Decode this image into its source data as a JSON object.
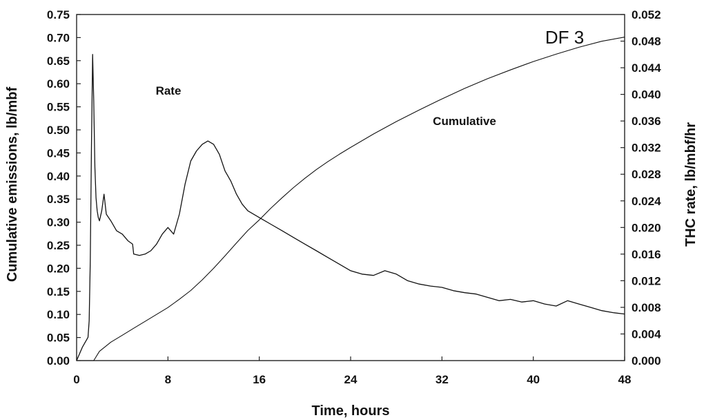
{
  "chart_data": {
    "type": "line",
    "title": "DF 3",
    "xlabel": "Time, hours",
    "ylabel_left": "Cumulative emissions, lb/mbf",
    "ylabel_right": "THC rate, lb/mbf/hr",
    "xlim": [
      0,
      48
    ],
    "ylim_left": [
      0,
      0.75
    ],
    "ylim_right": [
      0,
      0.052
    ],
    "x_ticks": [
      "0",
      "8",
      "16",
      "24",
      "32",
      "40",
      "48"
    ],
    "y_left_ticks": [
      "0.00",
      "0.05",
      "0.10",
      "0.15",
      "0.20",
      "0.25",
      "0.30",
      "0.35",
      "0.40",
      "0.45",
      "0.50",
      "0.55",
      "0.60",
      "0.65",
      "0.70",
      "0.75"
    ],
    "y_right_ticks": [
      "0.000",
      "0.004",
      "0.008",
      "0.012",
      "0.016",
      "0.020",
      "0.024",
      "0.028",
      "0.032",
      "0.036",
      "0.040",
      "0.044",
      "0.048",
      "0.052"
    ],
    "grid": false,
    "annotations": [
      {
        "text": "Rate",
        "x": 6.8,
        "y": 0.585,
        "axis": "left"
      },
      {
        "text": "Cumulative",
        "x": 29.8,
        "y": 0.5,
        "axis": "left"
      }
    ],
    "series": [
      {
        "name": "Rate",
        "axis": "right",
        "x": [
          0,
          0.5,
          1,
          1.1,
          1.2,
          1.3,
          1.4,
          1.5,
          1.6,
          1.7,
          1.8,
          1.9,
          2.0,
          2.2,
          2.4,
          2.6,
          2.8,
          3,
          3.5,
          4,
          4.5,
          4.9,
          5,
          5.5,
          6,
          6.5,
          7,
          7.5,
          8,
          8.5,
          9,
          9.5,
          10,
          10.5,
          11,
          11.5,
          12,
          12.5,
          13,
          13.5,
          14,
          14.5,
          15,
          16,
          17,
          18,
          19,
          20,
          21,
          22,
          23,
          24,
          25,
          26,
          27,
          28,
          29,
          30,
          31,
          32,
          33,
          34,
          35,
          36,
          37,
          38,
          39,
          40,
          41,
          42,
          43,
          44,
          45,
          46,
          47,
          48
        ],
        "y": [
          0.0,
          0.002,
          0.0035,
          0.006,
          0.015,
          0.032,
          0.046,
          0.039,
          0.029,
          0.0245,
          0.0225,
          0.0215,
          0.021,
          0.0225,
          0.025,
          0.022,
          0.0215,
          0.021,
          0.0195,
          0.019,
          0.018,
          0.0175,
          0.016,
          0.0158,
          0.016,
          0.0165,
          0.0175,
          0.019,
          0.02,
          0.019,
          0.022,
          0.0265,
          0.03,
          0.0315,
          0.0325,
          0.033,
          0.0325,
          0.031,
          0.0285,
          0.027,
          0.025,
          0.0235,
          0.0225,
          0.0215,
          0.0205,
          0.0195,
          0.0185,
          0.0175,
          0.0165,
          0.0155,
          0.0145,
          0.0135,
          0.013,
          0.0128,
          0.0135,
          0.013,
          0.012,
          0.0115,
          0.0112,
          0.011,
          0.0105,
          0.0102,
          0.01,
          0.0095,
          0.009,
          0.0092,
          0.0088,
          0.009,
          0.0085,
          0.0082,
          0.009,
          0.0085,
          0.008,
          0.0075,
          0.0072,
          0.007
        ]
      },
      {
        "name": "Cumulative",
        "axis": "left",
        "x": [
          0,
          1.5,
          2,
          3,
          4,
          5,
          6,
          7,
          8,
          9,
          10,
          11,
          12,
          13,
          14,
          15,
          16,
          17,
          18,
          19,
          20,
          21,
          22,
          23,
          24,
          26,
          28,
          30,
          32,
          34,
          36,
          38,
          40,
          42,
          44,
          46,
          48
        ],
        "y": [
          0,
          0.0,
          0.02,
          0.04,
          0.055,
          0.07,
          0.085,
          0.1,
          0.115,
          0.133,
          0.152,
          0.175,
          0.2,
          0.227,
          0.255,
          0.282,
          0.305,
          0.33,
          0.353,
          0.375,
          0.395,
          0.414,
          0.431,
          0.447,
          0.462,
          0.491,
          0.518,
          0.543,
          0.567,
          0.59,
          0.611,
          0.63,
          0.648,
          0.664,
          0.679,
          0.692,
          0.701
        ]
      }
    ]
  }
}
